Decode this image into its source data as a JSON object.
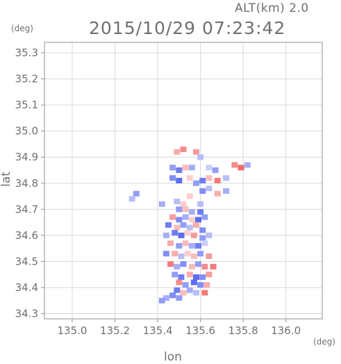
{
  "header": {
    "altitude_label": "ALT(km) 2.0",
    "timestamp": "2015/10/29 07:23:42"
  },
  "axes": {
    "y_unit": "(deg)",
    "x_unit": "(deg)",
    "ylabel": "lat",
    "xlabel": "lon"
  },
  "chart_data": {
    "type": "heatmap",
    "title": "",
    "xlabel": "lon",
    "ylabel": "lat",
    "x_unit": "deg",
    "y_unit": "deg",
    "xlim": [
      134.87,
      136.17
    ],
    "ylim": [
      34.28,
      35.34
    ],
    "x_ticks": [
      "135.0",
      "135.2",
      "135.4",
      "135.6",
      "135.8",
      "136.0"
    ],
    "y_ticks": [
      "34.3",
      "34.4",
      "34.5",
      "34.6",
      "34.7",
      "34.8",
      "34.9",
      "35.0",
      "35.1",
      "35.2",
      "35.3"
    ],
    "grid": true,
    "colorscale": {
      "negative": "#4a5cf0",
      "zero": "#ffffff",
      "positive": "#f05a5a"
    },
    "cells": [
      [
        135.49,
        34.92,
        0.5
      ],
      [
        135.52,
        34.93,
        0.7
      ],
      [
        135.58,
        34.92,
        0.6
      ],
      [
        135.6,
        34.9,
        -0.4
      ],
      [
        135.47,
        34.86,
        -0.6
      ],
      [
        135.5,
        34.85,
        -0.8
      ],
      [
        135.53,
        34.86,
        0.4
      ],
      [
        135.56,
        34.86,
        -0.5
      ],
      [
        135.64,
        34.86,
        -0.3
      ],
      [
        135.67,
        34.85,
        -0.6
      ],
      [
        135.76,
        34.87,
        0.7
      ],
      [
        135.79,
        34.86,
        0.9
      ],
      [
        135.82,
        34.87,
        -0.5
      ],
      [
        135.47,
        34.82,
        -0.7
      ],
      [
        135.5,
        34.81,
        -0.9
      ],
      [
        135.55,
        34.82,
        0.3
      ],
      [
        135.58,
        34.8,
        -0.6
      ],
      [
        135.61,
        34.81,
        -0.8
      ],
      [
        135.64,
        34.82,
        0.4
      ],
      [
        135.68,
        34.81,
        0.8
      ],
      [
        135.72,
        34.82,
        -0.4
      ],
      [
        135.61,
        34.77,
        -0.7
      ],
      [
        135.64,
        34.78,
        -0.4
      ],
      [
        135.68,
        34.76,
        0.5
      ],
      [
        135.72,
        34.77,
        -0.5
      ],
      [
        135.55,
        34.75,
        0.3
      ],
      [
        135.3,
        34.76,
        -0.6
      ],
      [
        135.28,
        34.74,
        -0.4
      ],
      [
        135.42,
        34.72,
        -0.5
      ],
      [
        135.49,
        34.73,
        -0.4
      ],
      [
        135.52,
        34.72,
        0.3
      ],
      [
        135.6,
        34.72,
        -0.4
      ],
      [
        135.5,
        34.7,
        -0.6
      ],
      [
        135.53,
        34.7,
        0.4
      ],
      [
        135.56,
        34.69,
        -0.5
      ],
      [
        135.6,
        34.69,
        -0.8
      ],
      [
        135.47,
        34.67,
        0.6
      ],
      [
        135.5,
        34.66,
        -0.7
      ],
      [
        135.53,
        34.67,
        -0.5
      ],
      [
        135.56,
        34.66,
        0.3
      ],
      [
        135.59,
        34.66,
        -0.9
      ],
      [
        135.62,
        34.67,
        -0.6
      ],
      [
        135.45,
        34.64,
        -0.8
      ],
      [
        135.49,
        34.63,
        0.4
      ],
      [
        135.52,
        34.64,
        -0.6
      ],
      [
        135.55,
        34.63,
        -0.4
      ],
      [
        135.58,
        34.64,
        0.5
      ],
      [
        135.61,
        34.62,
        -0.7
      ],
      [
        135.44,
        34.6,
        -0.5
      ],
      [
        135.48,
        34.61,
        -0.8
      ],
      [
        135.51,
        34.6,
        -0.9
      ],
      [
        135.54,
        34.61,
        0.3
      ],
      [
        135.57,
        34.6,
        0.6
      ],
      [
        135.61,
        34.59,
        -0.6
      ],
      [
        135.64,
        34.6,
        -0.4
      ],
      [
        135.46,
        34.57,
        0.5
      ],
      [
        135.5,
        34.56,
        -0.6
      ],
      [
        135.53,
        34.57,
        0.4
      ],
      [
        135.56,
        34.56,
        -0.5
      ],
      [
        135.59,
        34.56,
        -0.8
      ],
      [
        135.62,
        34.57,
        -0.3
      ],
      [
        135.44,
        34.53,
        -0.7
      ],
      [
        135.48,
        34.53,
        0.5
      ],
      [
        135.51,
        34.52,
        -0.4
      ],
      [
        135.54,
        34.53,
        0.3
      ],
      [
        135.57,
        34.52,
        0.4
      ],
      [
        135.6,
        34.53,
        -0.6
      ],
      [
        135.64,
        34.52,
        0.6
      ],
      [
        135.46,
        34.49,
        0.8
      ],
      [
        135.49,
        34.48,
        -0.5
      ],
      [
        135.52,
        34.49,
        -0.7
      ],
      [
        135.56,
        34.48,
        0.4
      ],
      [
        135.59,
        34.49,
        -0.6
      ],
      [
        135.62,
        34.48,
        0.7
      ],
      [
        135.66,
        34.48,
        0.8
      ],
      [
        135.48,
        34.45,
        -0.6
      ],
      [
        135.51,
        34.44,
        -0.8
      ],
      [
        135.55,
        34.45,
        0.5
      ],
      [
        135.58,
        34.44,
        -0.9
      ],
      [
        135.61,
        34.44,
        -0.7
      ],
      [
        135.64,
        34.45,
        0.6
      ],
      [
        135.5,
        34.42,
        0.7
      ],
      [
        135.53,
        34.41,
        -0.6
      ],
      [
        135.57,
        34.42,
        -0.9
      ],
      [
        135.6,
        34.41,
        -0.7
      ],
      [
        135.63,
        34.41,
        0.5
      ],
      [
        135.49,
        34.39,
        -0.8
      ],
      [
        135.52,
        34.38,
        0.4
      ],
      [
        135.55,
        34.39,
        -0.5
      ],
      [
        135.58,
        34.38,
        -0.4
      ],
      [
        135.62,
        34.38,
        0.8
      ],
      [
        135.44,
        34.36,
        -0.5
      ],
      [
        135.47,
        34.37,
        -0.7
      ],
      [
        135.5,
        34.36,
        -0.6
      ],
      [
        135.42,
        34.35,
        -0.6
      ]
    ]
  }
}
